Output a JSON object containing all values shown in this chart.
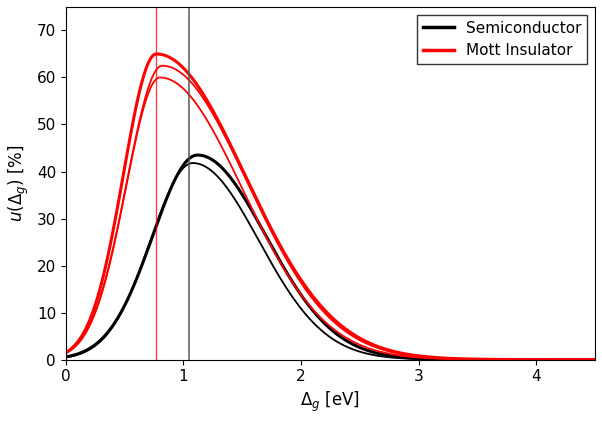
{
  "title": "",
  "xlabel": "$\\Delta_g$ [eV]",
  "ylabel": "$u(\\Delta_g)$ [%]",
  "xlim": [
    0,
    4.5
  ],
  "ylim": [
    0,
    75
  ],
  "xticks": [
    0,
    1,
    2,
    3,
    4
  ],
  "yticks": [
    0,
    10,
    20,
    30,
    40,
    50,
    60,
    70
  ],
  "semiconductor_color": "black",
  "mott_color": "red",
  "vline_red_x": 0.77,
  "vline_gray_x": 1.05,
  "legend_labels": [
    "Semiconductor",
    "Mott Insulator"
  ],
  "sc_curves": [
    {
      "peak_x": 1.12,
      "peak_y": 43.5,
      "sigma_l": 0.38,
      "sigma_r": 0.58,
      "lw": 2.2
    },
    {
      "peak_x": 1.08,
      "peak_y": 41.8,
      "sigma_l": 0.36,
      "sigma_r": 0.56,
      "lw": 1.3
    }
  ],
  "mott_curves": [
    {
      "peak_x": 0.77,
      "peak_y": 65.0,
      "sigma_l": 0.28,
      "sigma_r": 0.75,
      "lw": 2.2
    },
    {
      "peak_x": 0.82,
      "peak_y": 62.5,
      "sigma_l": 0.3,
      "sigma_r": 0.72,
      "lw": 1.3
    },
    {
      "peak_x": 0.8,
      "peak_y": 60.0,
      "sigma_l": 0.29,
      "sigma_r": 0.7,
      "lw": 1.3
    }
  ],
  "background_color": "white",
  "figsize": [
    6.02,
    4.21
  ],
  "dpi": 100
}
